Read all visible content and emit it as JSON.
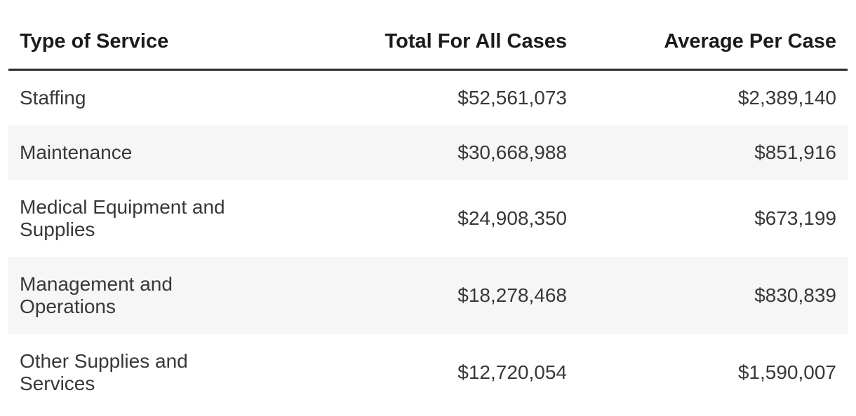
{
  "table": {
    "columns": [
      {
        "label": "Type of Service"
      },
      {
        "label": "Total For All Cases"
      },
      {
        "label": "Average Per Case"
      }
    ],
    "rows": [
      {
        "service": "Staffing",
        "total": "$52,561,073",
        "average": "$2,389,140"
      },
      {
        "service": "Maintenance",
        "total": "$30,668,988",
        "average": "$851,916"
      },
      {
        "service": "Medical Equipment and Supplies",
        "total": "$24,908,350",
        "average": "$673,199"
      },
      {
        "service": "Management and Operations",
        "total": "$18,278,468",
        "average": "$830,839"
      },
      {
        "service": "Other Supplies and Services",
        "total": "$12,720,054",
        "average": "$1,590,007"
      }
    ],
    "colors": {
      "stripe_background": "#f6f6f6",
      "header_text": "#1b1b1b",
      "body_text": "#383838",
      "header_rule": "#2b2b2b"
    }
  },
  "chart_data": {
    "type": "table",
    "title": "",
    "columns": [
      "Type of Service",
      "Total For All Cases",
      "Average Per Case"
    ],
    "rows": [
      [
        "Staffing",
        52561073,
        2389140
      ],
      [
        "Maintenance",
        30668988,
        851916
      ],
      [
        "Medical Equipment and Supplies",
        24908350,
        673199
      ],
      [
        "Management and Operations",
        18278468,
        830839
      ],
      [
        "Other Supplies and Services",
        12720054,
        1590007
      ]
    ],
    "value_format": "USD",
    "layout_hints": {
      "striped_rows": true,
      "stripe_rows_indices": [
        1,
        3
      ],
      "numeric_columns_align": "right",
      "header_rule": true
    }
  }
}
